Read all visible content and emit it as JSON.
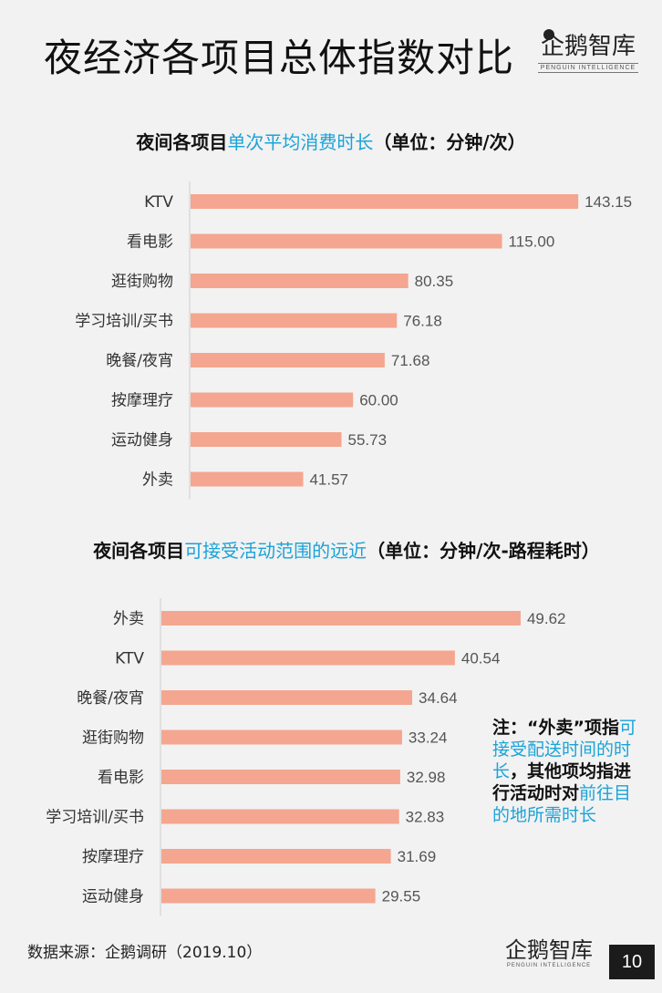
{
  "page": {
    "title": "夜经济各项目总体指数对比",
    "logo_text": "企鹅智库",
    "logo_sub": "PENGUIN INTELLIGENCE",
    "source": "数据来源：企鹅调研（2019.10）",
    "page_number": "10",
    "note": {
      "p1": "注：“外卖”项指",
      "hl1": "可接受配送时间的时长",
      "p2": "，其他项均指进行活动时对",
      "hl2": "前往目的地所需时长"
    }
  },
  "chart_data": [
    {
      "type": "bar",
      "orientation": "horizontal",
      "title_prefix": "夜间各项目",
      "title_highlight": "单次平均消费时长",
      "title_suffix": "（单位：分钟/次）",
      "categories": [
        "KTV",
        "看电影",
        "逛街购物",
        "学习培训/买书",
        "晚餐/夜宵",
        "按摩理疗",
        "运动健身",
        "外卖"
      ],
      "values": [
        143.15,
        115.0,
        80.35,
        76.18,
        71.68,
        60.0,
        55.73,
        41.57
      ],
      "value_labels": [
        "143.15",
        "115.00",
        "80.35",
        "76.18",
        "71.68",
        "60.00",
        "55.73",
        "41.57"
      ],
      "bar_color": "#f4a690"
    },
    {
      "type": "bar",
      "orientation": "horizontal",
      "title_prefix": "夜间各项目",
      "title_highlight": "可接受活动范围的远近",
      "title_suffix": "（单位：分钟/次-路程耗时）",
      "categories": [
        "外卖",
        "KTV",
        "晚餐/夜宵",
        "逛街购物",
        "看电影",
        "学习培训/买书",
        "按摩理疗",
        "运动健身"
      ],
      "values": [
        49.62,
        40.54,
        34.64,
        33.24,
        32.98,
        32.83,
        31.69,
        29.55
      ],
      "value_labels": [
        "49.62",
        "40.54",
        "34.64",
        "33.24",
        "32.98",
        "32.83",
        "31.69",
        "29.55"
      ],
      "bar_color": "#f4a690"
    }
  ]
}
